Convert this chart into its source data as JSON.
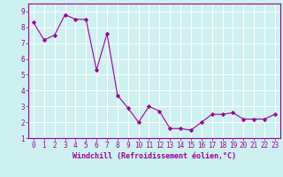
{
  "x": [
    0,
    1,
    2,
    3,
    4,
    5,
    6,
    7,
    8,
    9,
    10,
    11,
    12,
    13,
    14,
    15,
    16,
    17,
    18,
    19,
    20,
    21,
    22,
    23
  ],
  "y": [
    8.3,
    7.2,
    7.5,
    8.8,
    8.5,
    8.5,
    5.3,
    7.6,
    3.7,
    2.9,
    2.0,
    3.0,
    2.7,
    1.6,
    1.6,
    1.5,
    2.0,
    2.5,
    2.5,
    2.6,
    2.2,
    2.2,
    2.2,
    2.5
  ],
  "line_color": "#990099",
  "marker": "D",
  "marker_size": 2.2,
  "xlabel": "Windchill (Refroidissement éolien,°C)",
  "ylim": [
    1,
    9.5
  ],
  "xlim": [
    -0.5,
    23.5
  ],
  "yticks": [
    1,
    2,
    3,
    4,
    5,
    6,
    7,
    8,
    9
  ],
  "xticks": [
    0,
    1,
    2,
    3,
    4,
    5,
    6,
    7,
    8,
    9,
    10,
    11,
    12,
    13,
    14,
    15,
    16,
    17,
    18,
    19,
    20,
    21,
    22,
    23
  ],
  "background_color": "#cef0f0",
  "grid_color": "#ffffff",
  "tick_color": "#990099",
  "label_color": "#990099",
  "spine_color": "#990099",
  "tick_fontsize": 5.5,
  "xlabel_fontsize": 6.0,
  "linewidth": 0.8
}
